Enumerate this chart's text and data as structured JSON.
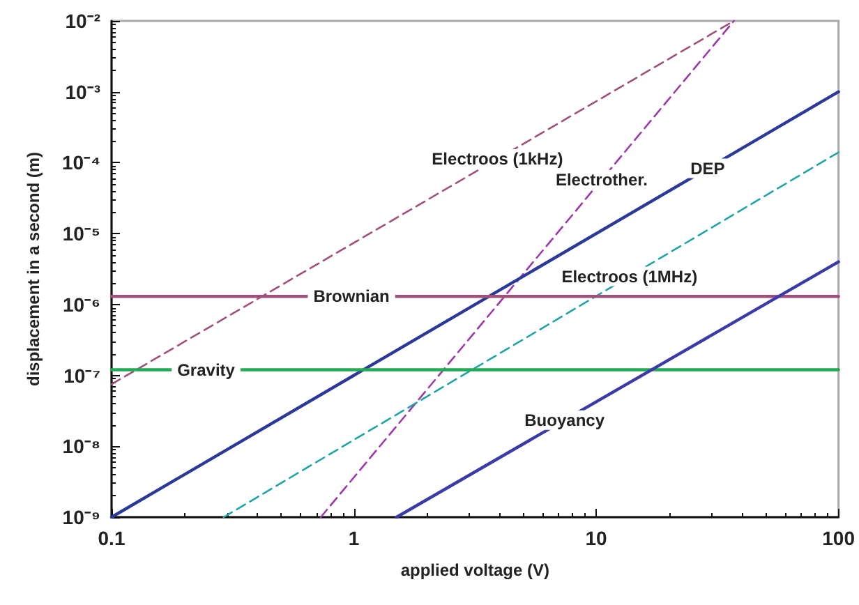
{
  "chart_data": {
    "type": "line",
    "xlabel": "applied voltage (V)",
    "ylabel": "displacement in a second (m)",
    "log": "xy",
    "grid": false,
    "legend": false,
    "marker": "none",
    "xlim": [
      0.1,
      100
    ],
    "xticks": [
      0.1,
      1,
      10,
      100
    ],
    "ylim": [
      1e-09,
      0.01
    ],
    "yticks": [
      {
        "value": 1e-09,
        "label": "10⁻⁹"
      },
      {
        "value": 1e-08,
        "label": "10⁻⁸"
      },
      {
        "value": 1e-07,
        "label": "10⁻⁷"
      },
      {
        "value": 1e-06,
        "label": "10⁻⁶"
      },
      {
        "value": 1e-05,
        "label": "10⁻⁵"
      },
      {
        "value": 0.0001,
        "label": "10⁻⁴"
      },
      {
        "value": 0.001,
        "label": "10⁻³"
      },
      {
        "value": 0.01,
        "label": "10⁻²"
      }
    ],
    "series": [
      {
        "name": "Electroos (1kHz)",
        "color": "#a0507a",
        "line_style": "dashed",
        "x": [
          0.1,
          37
        ],
        "values": [
          7.5e-08,
          0.01
        ]
      },
      {
        "name": "Electrother.",
        "color": "#9b3aa8",
        "line_style": "dashed",
        "x": [
          0.73,
          37
        ],
        "values": [
          1e-09,
          0.01
        ]
      },
      {
        "name": "DEP",
        "color": "#2b3a9a",
        "line_style": "solid",
        "x": [
          0.1,
          100
        ],
        "values": [
          1e-09,
          0.001
        ]
      },
      {
        "name": "Electroos (1MHz)",
        "color": "#1fa5a8",
        "line_style": "dashed",
        "x": [
          0.29,
          100
        ],
        "values": [
          1e-09,
          0.00014
        ]
      },
      {
        "name": "Brownian",
        "color": "#a0507a",
        "line_style": "solid",
        "x": [
          0.1,
          100
        ],
        "values": [
          1.3e-06,
          1.3e-06
        ]
      },
      {
        "name": "Gravity",
        "color": "#22aa55",
        "line_style": "solid",
        "x": [
          0.1,
          100
        ],
        "values": [
          1.2e-07,
          1.2e-07
        ]
      },
      {
        "name": "Buoyancy",
        "color": "#3a3aa8",
        "line_style": "solid",
        "x": [
          1.5,
          100
        ],
        "values": [
          1e-09,
          4e-06
        ]
      }
    ]
  }
}
